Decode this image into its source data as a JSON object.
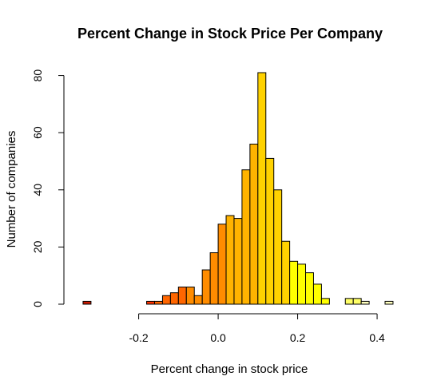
{
  "chart_data": {
    "type": "bar",
    "title": "Percent Change in Stock Price Per Company",
    "xlabel": "Percent change in stock price",
    "ylabel": "Number of companies",
    "bin_width": 0.02,
    "bin_start": -0.34,
    "counts": [
      1,
      0,
      0,
      0,
      0,
      0,
      0,
      0,
      1,
      1,
      3,
      4,
      6,
      6,
      3,
      12,
      18,
      28,
      31,
      30,
      47,
      56,
      81,
      51,
      40,
      22,
      15,
      14,
      11,
      7,
      2,
      0,
      0,
      2,
      2,
      1,
      0,
      0,
      1
    ],
    "xlim": [
      -0.36,
      0.42
    ],
    "ylim": [
      0,
      81
    ],
    "x_ticks": [
      {
        "value": -0.2,
        "label": "-0.2"
      },
      {
        "value": 0.0,
        "label": "0.0"
      },
      {
        "value": 0.2,
        "label": "0.2"
      },
      {
        "value": 0.4,
        "label": "0.4"
      }
    ],
    "y_ticks": [
      {
        "value": 0,
        "label": "0"
      },
      {
        "value": 20,
        "label": "20"
      },
      {
        "value": 40,
        "label": "40"
      },
      {
        "value": 60,
        "label": "60"
      },
      {
        "value": 80,
        "label": "80"
      }
    ],
    "palette": [
      "#cc1a00",
      "#ff3300",
      "#ff6600",
      "#ff8c00",
      "#ffb300",
      "#ffd200",
      "#ffff00",
      "#ffff66",
      "#ffffbf"
    ],
    "grid": false,
    "legend": false
  }
}
